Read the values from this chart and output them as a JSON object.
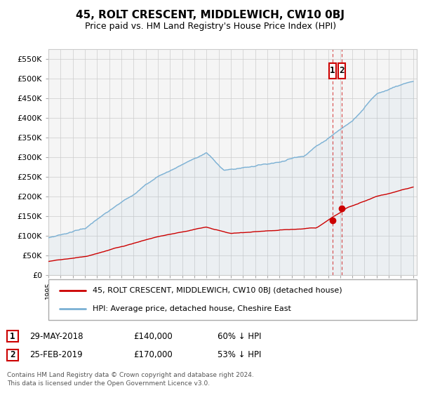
{
  "title": "45, ROLT CRESCENT, MIDDLEWICH, CW10 0BJ",
  "subtitle": "Price paid vs. HM Land Registry's House Price Index (HPI)",
  "ytick_vals": [
    0,
    50000,
    100000,
    150000,
    200000,
    250000,
    300000,
    350000,
    400000,
    450000,
    500000,
    550000
  ],
  "ylim": [
    0,
    575000
  ],
  "xlim": [
    1995,
    2025.3
  ],
  "hpi_color": "#7ab0d4",
  "price_color": "#cc0000",
  "annotation_box_color": "#cc0000",
  "bg_color": "#f5f5f5",
  "legend_label_price": "45, ROLT CRESCENT, MIDDLEWICH, CW10 0BJ (detached house)",
  "legend_label_hpi": "HPI: Average price, detached house, Cheshire East",
  "sale1_x": 2018.37,
  "sale1_y": 140000,
  "sale2_x": 2019.12,
  "sale2_y": 170000,
  "footer": "Contains HM Land Registry data © Crown copyright and database right 2024.\nThis data is licensed under the Open Government Licence v3.0.",
  "table_rows": [
    {
      "num": "1",
      "date": "29-MAY-2018",
      "price": "£140,000",
      "pct": "60% ↓ HPI"
    },
    {
      "num": "2",
      "date": "25-FEB-2019",
      "price": "£170,000",
      "pct": "53% ↓ HPI"
    }
  ]
}
